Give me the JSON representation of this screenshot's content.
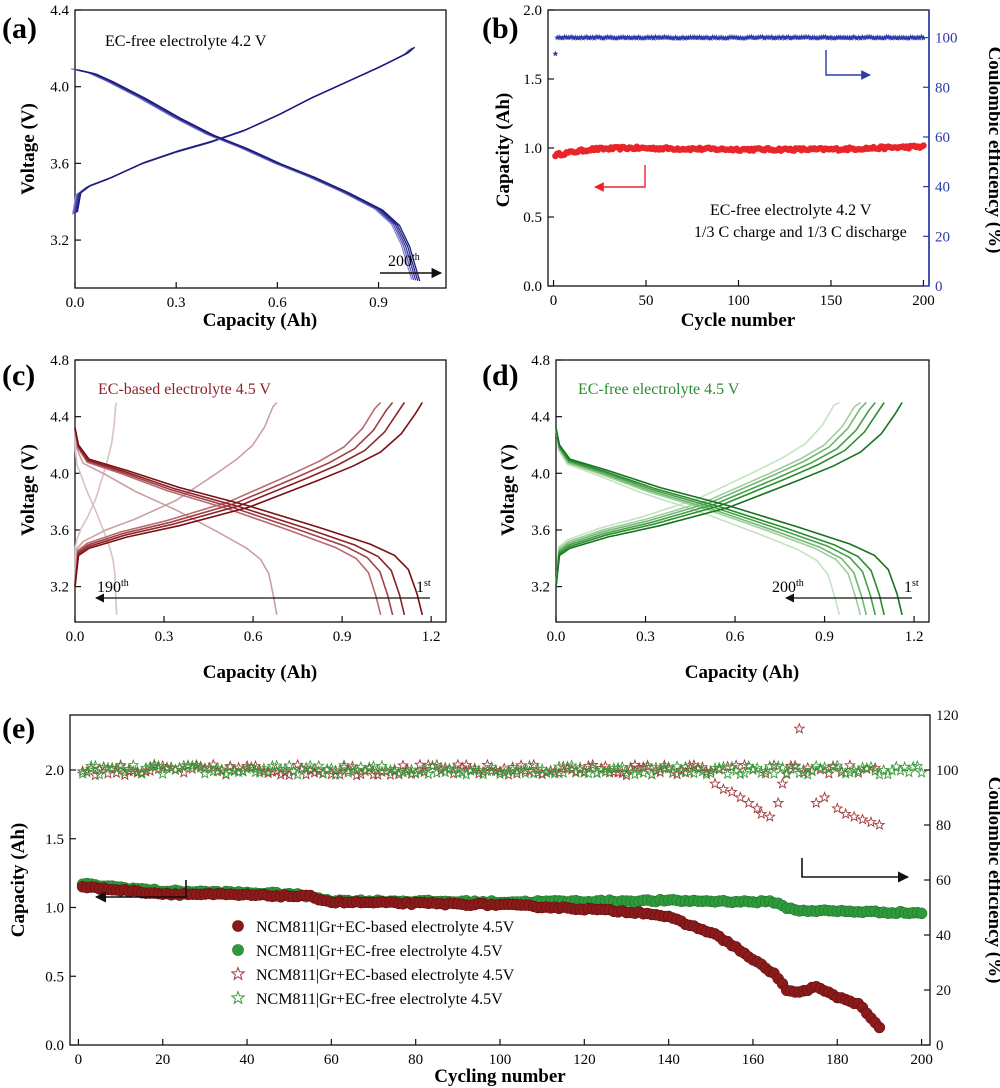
{
  "chart_data": [
    {
      "id": "a",
      "panel_label": "(a)",
      "type": "line",
      "title": "EC-free electrolyte 4.2 V",
      "xlabel": "Capacity (Ah)",
      "ylabel": "Voltage (V)",
      "xlim": [
        0,
        1.1
      ],
      "ylim": [
        2.95,
        4.4
      ],
      "xticks": [
        0.0,
        0.3,
        0.6,
        0.9
      ],
      "xtick_labels": [
        "0.0",
        "0.3",
        "0.6",
        "0.9"
      ],
      "yticks": [
        3.2,
        3.6,
        4.0,
        4.4
      ],
      "ytick_labels": [
        "3.2",
        "3.6",
        "4.0",
        "4.4"
      ],
      "annotation": "200",
      "annotation_sup": "th",
      "color_dark": "#1a1a7a",
      "color_light": "#8a8ad0",
      "series": [
        {
          "name": "charge",
          "x": [
            0.0,
            0.01,
            0.04,
            0.1,
            0.2,
            0.3,
            0.4,
            0.5,
            0.6,
            0.7,
            0.8,
            0.9,
            0.98,
            1.0
          ],
          "y": [
            3.34,
            3.44,
            3.48,
            3.52,
            3.6,
            3.66,
            3.71,
            3.77,
            3.85,
            3.94,
            4.02,
            4.1,
            4.17,
            4.2
          ]
        },
        {
          "name": "discharge",
          "x": [
            0.0,
            0.05,
            0.1,
            0.2,
            0.3,
            0.4,
            0.5,
            0.6,
            0.7,
            0.8,
            0.9,
            0.95,
            0.98,
            1.0,
            1.01
          ],
          "y": [
            4.09,
            4.07,
            4.03,
            3.94,
            3.84,
            3.75,
            3.68,
            3.6,
            3.53,
            3.45,
            3.36,
            3.28,
            3.17,
            3.05,
            2.99
          ]
        }
      ]
    },
    {
      "id": "b",
      "panel_label": "(b)",
      "type": "scatter",
      "title": "EC-free electrolyte 4.2 V",
      "subtitle": "1/3 C charge and 1/3 C discharge",
      "xlabel": "Cycle number",
      "ylabel": "Capacity (Ah)",
      "y2label": "Coulombic efficiency (%)",
      "xlim": [
        -3,
        203
      ],
      "ylim": [
        0,
        2.0
      ],
      "y2lim": [
        0,
        111.11
      ],
      "xticks": [
        0,
        50,
        100,
        150,
        200
      ],
      "xtick_labels": [
        "0",
        "50",
        "100",
        "150",
        "200"
      ],
      "yticks": [
        0.0,
        0.5,
        1.0,
        1.5,
        2.0
      ],
      "ytick_labels": [
        "0.0",
        "0.5",
        "1.0",
        "1.5",
        "2.0"
      ],
      "y2ticks": [
        0,
        20,
        40,
        60,
        80,
        100
      ],
      "y2tick_labels": [
        "0",
        "20",
        "40",
        "60",
        "80",
        "100"
      ],
      "series": [
        {
          "name": "Capacity",
          "axis": "left",
          "color": "#e8262a",
          "marker": "circle",
          "x_start": 1,
          "x_end": 200,
          "y_points": [
            [
              1,
              0.95
            ],
            [
              10,
              0.97
            ],
            [
              20,
              0.99
            ],
            [
              40,
              1.0
            ],
            [
              100,
              0.99
            ],
            [
              150,
              0.99
            ],
            [
              200,
              1.01
            ]
          ]
        },
        {
          "name": "Coulombic efficiency",
          "axis": "right",
          "color": "#2b3ba8",
          "marker": "star",
          "x_start": 1,
          "x_end": 200,
          "first_value": 93.5,
          "value": 100
        }
      ]
    },
    {
      "id": "c",
      "panel_label": "(c)",
      "type": "line",
      "title": "EC-based electrolyte 4.5 V",
      "xlabel": "Capacity (Ah)",
      "ylabel": "Voltage (V)",
      "xlim": [
        0,
        1.25
      ],
      "ylim": [
        2.95,
        4.8
      ],
      "xticks": [
        0.0,
        0.3,
        0.6,
        0.9,
        1.2
      ],
      "xtick_labels": [
        "0.0",
        "0.3",
        "0.6",
        "0.9",
        "1.2"
      ],
      "yticks": [
        3.2,
        3.6,
        4.0,
        4.4,
        4.8
      ],
      "ytick_labels": [
        "3.2",
        "3.6",
        "4.0",
        "4.4",
        "4.8"
      ],
      "left_label": "190",
      "left_label_sup": "th",
      "right_label": "1",
      "right_label_sup": "st",
      "capacities": [
        1.17,
        1.11,
        1.07,
        1.03,
        0.68,
        0.14
      ],
      "colors": [
        "#7a0f14",
        "#8c2228",
        "#a04046",
        "#b86a70",
        "#caa0a3",
        "#d8c2c4"
      ]
    },
    {
      "id": "d",
      "panel_label": "(d)",
      "type": "line",
      "title": "EC-free electrolyte  4.5 V",
      "xlabel": "Capacity (Ah)",
      "ylabel": "Voltage (V)",
      "xlim": [
        0,
        1.25
      ],
      "ylim": [
        2.95,
        4.8
      ],
      "xticks": [
        0.0,
        0.3,
        0.6,
        0.9,
        1.2
      ],
      "xtick_labels": [
        "0.0",
        "0.3",
        "0.6",
        "0.9",
        "1.2"
      ],
      "yticks": [
        3.2,
        3.6,
        4.0,
        4.4,
        4.8
      ],
      "ytick_labels": [
        "3.2",
        "3.6",
        "4.0",
        "4.4",
        "4.8"
      ],
      "left_label": "200",
      "left_label_sup": "th",
      "right_label": "1",
      "right_label_sup": "st",
      "capacities": [
        1.16,
        1.1,
        1.07,
        1.04,
        1.02,
        0.95
      ],
      "colors": [
        "#16731f",
        "#2a8c2e",
        "#48a04a",
        "#72b872",
        "#9dcf9c",
        "#c5e3c3"
      ]
    },
    {
      "id": "e",
      "panel_label": "(e)",
      "type": "scatter",
      "xlabel": "Cycling number",
      "ylabel": "Capacity (Ah)",
      "y2label": "Coulombic efficiency (%)",
      "xlim": [
        -2,
        202
      ],
      "ylim": [
        0,
        2.4
      ],
      "y2lim": [
        0,
        120
      ],
      "xticks": [
        0,
        20,
        40,
        60,
        80,
        100,
        120,
        140,
        160,
        180,
        200
      ],
      "xtick_labels": [
        "0",
        "20",
        "40",
        "60",
        "80",
        "100",
        "120",
        "140",
        "160",
        "180",
        "200"
      ],
      "yticks": [
        0.0,
        0.5,
        1.0,
        1.5,
        2.0
      ],
      "ytick_labels": [
        "0.0",
        "0.5",
        "1.0",
        "1.5",
        "2.0"
      ],
      "y2ticks": [
        0,
        20,
        40,
        60,
        80,
        100,
        120
      ],
      "y2tick_labels": [
        "0",
        "20",
        "40",
        "60",
        "80",
        "100",
        "120"
      ],
      "series": [
        {
          "name": "NCM811|Gr+EC-based electrolyte 4.5V",
          "axis": "left",
          "marker": "circle",
          "color": "#8b1a1a",
          "points": [
            [
              1,
              1.15
            ],
            [
              20,
              1.1
            ],
            [
              40,
              1.09
            ],
            [
              55,
              1.08
            ],
            [
              60,
              1.04
            ],
            [
              100,
              1.02
            ],
            [
              120,
              0.99
            ],
            [
              135,
              0.96
            ],
            [
              140,
              0.93
            ],
            [
              145,
              0.87
            ],
            [
              150,
              0.82
            ],
            [
              155,
              0.73
            ],
            [
              160,
              0.62
            ],
            [
              165,
              0.52
            ],
            [
              168,
              0.4
            ],
            [
              170,
              0.38
            ],
            [
              175,
              0.42
            ],
            [
              180,
              0.35
            ],
            [
              185,
              0.3
            ],
            [
              188,
              0.2
            ],
            [
              190,
              0.12
            ]
          ]
        },
        {
          "name": "NCM811|Gr+EC-free electrolyte   4.5V",
          "axis": "left",
          "marker": "circle",
          "color": "#2e9a3c",
          "points": [
            [
              1,
              1.17
            ],
            [
              20,
              1.12
            ],
            [
              50,
              1.1
            ],
            [
              57,
              1.07
            ],
            [
              60,
              1.05
            ],
            [
              100,
              1.04
            ],
            [
              140,
              1.05
            ],
            [
              165,
              1.04
            ],
            [
              168,
              1.0
            ],
            [
              170,
              0.98
            ],
            [
              200,
              0.96
            ]
          ]
        },
        {
          "name": "NCM811|Gr+EC-based electrolyte 4.5V",
          "axis": "right",
          "marker": "star",
          "color": "#a03a3a",
          "base": 100,
          "special": [
            [
              171,
              115
            ],
            [
              151,
              95
            ],
            [
              153,
              93
            ],
            [
              155,
              92
            ],
            [
              157,
              90
            ],
            [
              159,
              88
            ],
            [
              161,
              86
            ],
            [
              162,
              84
            ],
            [
              164,
              83
            ],
            [
              166,
              88
            ],
            [
              167,
              95
            ],
            [
              175,
              88
            ],
            [
              177,
              90
            ],
            [
              180,
              86
            ],
            [
              182,
              84
            ],
            [
              184,
              83
            ],
            [
              186,
              82
            ],
            [
              188,
              81
            ],
            [
              190,
              80
            ]
          ]
        },
        {
          "name": "NCM811|Gr+EC-free electrolyte   4.5V",
          "axis": "right",
          "marker": "star",
          "color": "#3c9a3c",
          "base": 100
        }
      ]
    }
  ]
}
